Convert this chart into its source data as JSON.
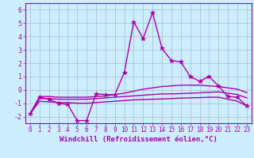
{
  "xlabel": "Windchill (Refroidissement éolien,°C)",
  "x": [
    0,
    1,
    2,
    3,
    4,
    5,
    6,
    7,
    8,
    9,
    10,
    11,
    12,
    13,
    14,
    15,
    16,
    17,
    18,
    19,
    20,
    21,
    22,
    23
  ],
  "line_marked": [
    -1.8,
    -0.55,
    -0.7,
    -1.0,
    -1.1,
    -2.3,
    -2.3,
    -0.3,
    -0.35,
    -0.35,
    1.3,
    5.1,
    3.85,
    5.8,
    3.1,
    2.2,
    2.1,
    1.0,
    0.65,
    1.0,
    0.3,
    -0.5,
    -0.55,
    -1.2
  ],
  "line_smooth1": [
    -1.8,
    -0.5,
    -0.5,
    -0.55,
    -0.55,
    -0.55,
    -0.55,
    -0.5,
    -0.45,
    -0.35,
    -0.25,
    -0.1,
    0.05,
    0.15,
    0.25,
    0.3,
    0.35,
    0.35,
    0.35,
    0.3,
    0.25,
    0.15,
    0.05,
    -0.2
  ],
  "line_smooth2": [
    -1.8,
    -0.65,
    -0.65,
    -0.7,
    -0.7,
    -0.7,
    -0.7,
    -0.65,
    -0.6,
    -0.55,
    -0.5,
    -0.45,
    -0.4,
    -0.35,
    -0.3,
    -0.3,
    -0.28,
    -0.25,
    -0.22,
    -0.18,
    -0.15,
    -0.25,
    -0.35,
    -0.6
  ],
  "line_smooth3": [
    -1.8,
    -0.85,
    -0.9,
    -0.95,
    -0.95,
    -1.0,
    -1.0,
    -0.95,
    -0.9,
    -0.85,
    -0.8,
    -0.75,
    -0.72,
    -0.7,
    -0.68,
    -0.65,
    -0.62,
    -0.6,
    -0.58,
    -0.55,
    -0.55,
    -0.7,
    -0.85,
    -1.2
  ],
  "ylim": [
    -2.5,
    6.5
  ],
  "yticks": [
    -2,
    -1,
    0,
    1,
    2,
    3,
    4,
    5,
    6
  ],
  "bg_color": "#cceeff",
  "grid_color": "#aabbcc",
  "line_color": "#aa00aa",
  "marker": "*",
  "marker_size": 4,
  "linewidth": 1.0,
  "tick_fontsize": 5.5,
  "xlabel_fontsize": 6.5
}
